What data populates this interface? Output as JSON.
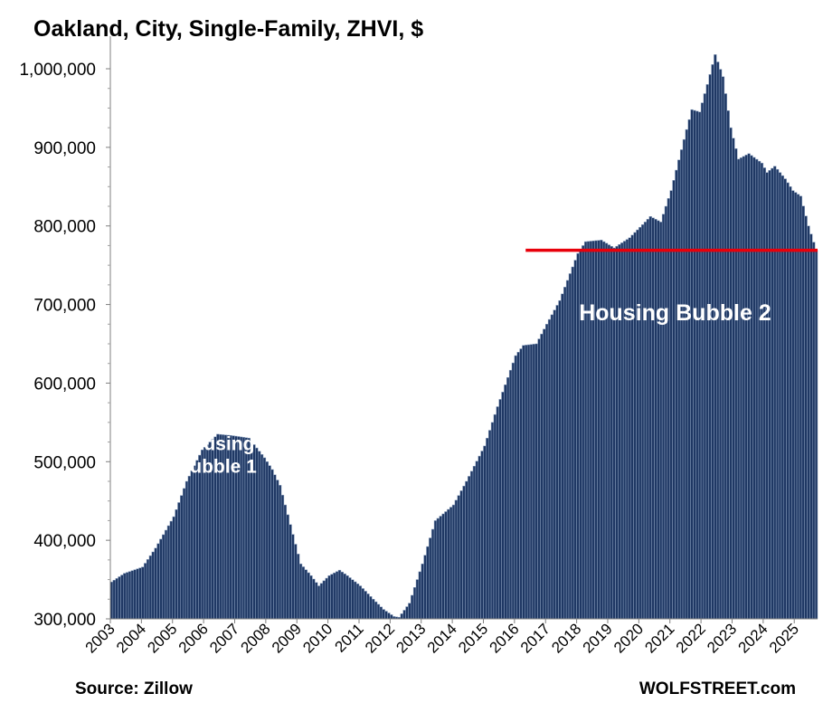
{
  "chart_data": {
    "type": "bar",
    "title": "Oakland, City, Single-Family, ZHVI, $",
    "source": "Source: Zillow",
    "brand": "WOLFSTREET.com",
    "xlabel": "",
    "ylabel": "",
    "ylim": [
      300000,
      1020000
    ],
    "yticks": [
      300000,
      400000,
      500000,
      600000,
      700000,
      800000,
      900000,
      1000000
    ],
    "ytick_labels": [
      "300,000",
      "400,000",
      "500,000",
      "600,000",
      "700,000",
      "800,000",
      "900,000",
      "1,000,000"
    ],
    "xticks": [
      "2003",
      "2004",
      "2005",
      "2006",
      "2007",
      "2008",
      "2009",
      "2010",
      "2011",
      "2012",
      "2013",
      "2014",
      "2015",
      "2016",
      "2017",
      "2018",
      "2019",
      "2020",
      "2021",
      "2022",
      "2023",
      "2024",
      "2025"
    ],
    "x_start": "2003-01",
    "x_end": "2025-09",
    "monthly": true,
    "bar_color": "#1f3864",
    "bar_edge_color": "#8da2c0",
    "anchors": [
      [
        "2003-01",
        347000
      ],
      [
        "2003-06",
        358000
      ],
      [
        "2004-01",
        366000
      ],
      [
        "2004-06",
        390000
      ],
      [
        "2005-01",
        430000
      ],
      [
        "2005-06",
        475000
      ],
      [
        "2005-12",
        515000
      ],
      [
        "2006-06",
        535000
      ],
      [
        "2006-12",
        533000
      ],
      [
        "2007-06",
        530000
      ],
      [
        "2007-12",
        505000
      ],
      [
        "2008-03",
        490000
      ],
      [
        "2008-06",
        470000
      ],
      [
        "2008-10",
        420000
      ],
      [
        "2009-02",
        370000
      ],
      [
        "2009-06",
        355000
      ],
      [
        "2009-09",
        342000
      ],
      [
        "2010-01",
        355000
      ],
      [
        "2010-05",
        362000
      ],
      [
        "2010-08",
        355000
      ],
      [
        "2011-01",
        342000
      ],
      [
        "2011-06",
        325000
      ],
      [
        "2011-10",
        312000
      ],
      [
        "2012-02",
        303000
      ],
      [
        "2012-04",
        302000
      ],
      [
        "2012-08",
        320000
      ],
      [
        "2013-01",
        370000
      ],
      [
        "2013-06",
        425000
      ],
      [
        "2014-01",
        445000
      ],
      [
        "2014-06",
        475000
      ],
      [
        "2015-01",
        520000
      ],
      [
        "2015-06",
        570000
      ],
      [
        "2016-01",
        635000
      ],
      [
        "2016-04",
        648000
      ],
      [
        "2016-09",
        650000
      ],
      [
        "2017-01",
        675000
      ],
      [
        "2017-06",
        705000
      ],
      [
        "2018-01",
        765000
      ],
      [
        "2018-04",
        780000
      ],
      [
        "2018-10",
        782000
      ],
      [
        "2019-03",
        772000
      ],
      [
        "2019-09",
        785000
      ],
      [
        "2020-03",
        805000
      ],
      [
        "2020-05",
        812000
      ],
      [
        "2020-09",
        805000
      ],
      [
        "2021-01",
        845000
      ],
      [
        "2021-06",
        910000
      ],
      [
        "2021-09",
        948000
      ],
      [
        "2021-12",
        945000
      ],
      [
        "2022-03",
        980000
      ],
      [
        "2022-06",
        1018000
      ],
      [
        "2022-09",
        990000
      ],
      [
        "2022-12",
        925000
      ],
      [
        "2023-03",
        885000
      ],
      [
        "2023-07",
        892000
      ],
      [
        "2023-12",
        880000
      ],
      [
        "2024-02",
        868000
      ],
      [
        "2024-05",
        876000
      ],
      [
        "2024-09",
        860000
      ],
      [
        "2024-12",
        845000
      ],
      [
        "2025-03",
        838000
      ],
      [
        "2025-06",
        800000
      ],
      [
        "2025-09",
        769000
      ]
    ],
    "reference_line": {
      "value": 769000,
      "from": "2017-01",
      "to": "2025-09",
      "color": "#e8000b"
    },
    "annotations": [
      {
        "lines": [
          "Housing",
          "Bubble 1"
        ],
        "x": "2006-06",
        "y": 515000
      },
      {
        "lines": [
          "Housing Bubble 2"
        ],
        "x": "2021-03",
        "y": 680000
      }
    ]
  }
}
